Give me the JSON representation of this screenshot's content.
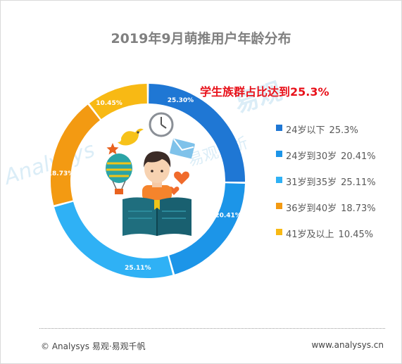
{
  "title": "2019年9月萌推用户年龄分布",
  "highlight": "学生族群占比达到25.3%",
  "watermark": {
    "brand": "易观",
    "sub": "易观分析",
    "logo": "Analysys"
  },
  "chart_data": {
    "type": "pie",
    "variant": "donut",
    "title": "2019年9月萌推用户年龄分布",
    "categories": [
      "24岁以下",
      "24岁到30岁",
      "31岁到35岁",
      "36岁到40岁",
      "41岁及以上"
    ],
    "values": [
      25.3,
      20.41,
      25.11,
      18.73,
      10.45
    ],
    "slice_labels": [
      "25.30%",
      "20.41%",
      "25.11%",
      "18.73%",
      "10.45%"
    ],
    "legend_values": [
      "25.3%",
      "20.41%",
      "25.11%",
      "18.73%",
      "10.45%"
    ],
    "colors": [
      "#1f77d4",
      "#1c95e8",
      "#2fb1f5",
      "#f39a12",
      "#f8b914"
    ],
    "legend_position": "right"
  },
  "footer": {
    "left": "© Analysys 易观·易观千帆",
    "right": "www.analysys.cn"
  }
}
